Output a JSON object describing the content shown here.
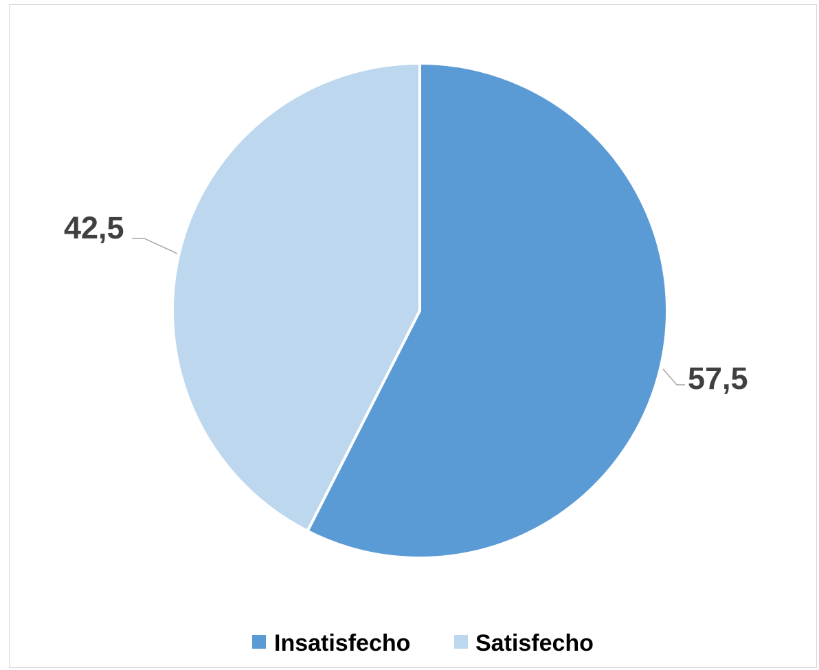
{
  "chart_data": {
    "type": "pie",
    "categories": [
      "Insatisfecho",
      "Satisfecho"
    ],
    "values": [
      57.5,
      42.5
    ],
    "value_labels": [
      "57,5",
      "42,5"
    ],
    "colors": [
      "#5b9bd5",
      "#bdd7ee"
    ],
    "start_angle_deg": 0,
    "direction": "clockwise",
    "legend_position": "bottom",
    "title": ""
  }
}
